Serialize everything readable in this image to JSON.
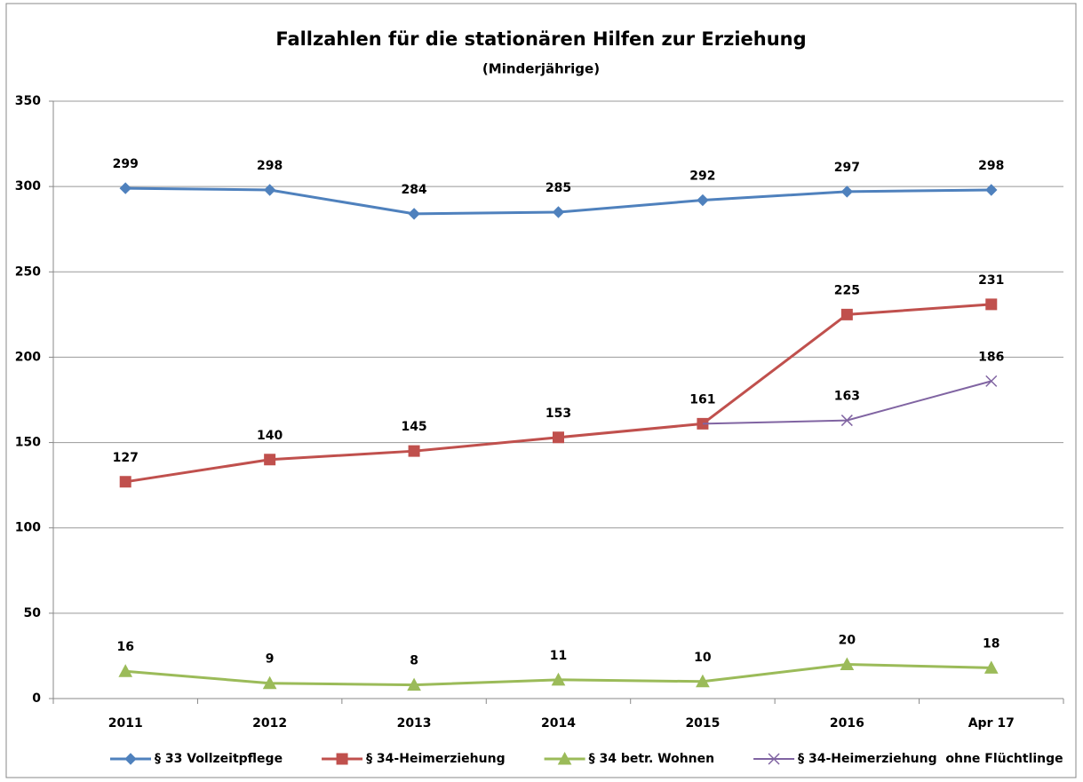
{
  "chart_data": {
    "type": "line",
    "title": "Fallzahlen für die stationären Hilfen zur Erziehung",
    "subtitle": "(Minderjährige)",
    "categories": [
      "2011",
      "2012",
      "2013",
      "2014",
      "2015",
      "2016",
      "Apr 17"
    ],
    "series": [
      {
        "name": "§ 33 Vollzeitpflege",
        "color": "#4f81bd",
        "marker": "diamond",
        "values": [
          299,
          298,
          284,
          285,
          292,
          297,
          298
        ]
      },
      {
        "name": "§ 34-Heimerziehung",
        "color": "#c0504d",
        "marker": "square",
        "values": [
          127,
          140,
          145,
          153,
          161,
          225,
          231
        ]
      },
      {
        "name": "§ 34 betr. Wohnen",
        "color": "#9bbb59",
        "marker": "triangle",
        "values": [
          16,
          9,
          8,
          11,
          10,
          20,
          18
        ]
      },
      {
        "name": "§ 34-Heimerziehung  ohne Flüchtlinge",
        "color": "#8064a2",
        "marker": "x",
        "values": [
          null,
          null,
          null,
          null,
          161,
          163,
          186
        ]
      }
    ],
    "ylim": [
      0,
      350
    ],
    "yticks": [
      0,
      50,
      100,
      150,
      200,
      250,
      300,
      350
    ],
    "grid": true,
    "legend": "bottom"
  }
}
